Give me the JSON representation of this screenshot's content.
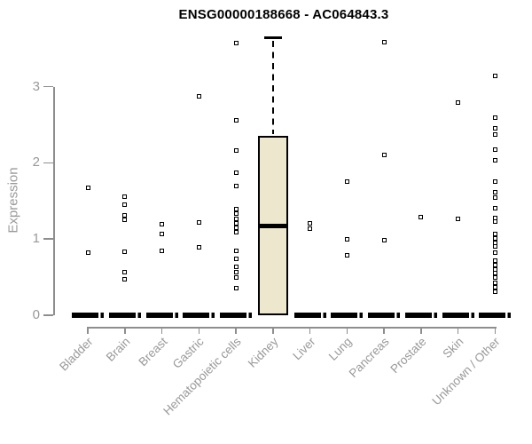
{
  "chart_data": {
    "type": "boxplot",
    "title": "ENSG00000188668 - AC064843.3",
    "ylabel": "Expression",
    "xlabel": "",
    "ylim": [
      0,
      3.8
    ],
    "yticks": [
      0,
      1,
      2,
      3
    ],
    "grid": "off",
    "legend": "none",
    "categories": [
      "Bladder",
      "Brain",
      "Breast",
      "Gastric",
      "Hematopoietic cells",
      "Kidney",
      "Liver",
      "Lung",
      "Pancreas",
      "Prostate",
      "Skin",
      "Unknown / Other"
    ],
    "groups": [
      {
        "name": "Bladder",
        "box": {
          "q1": 0,
          "median": 0,
          "q3": 0
        },
        "points": [
          1.67,
          0.82
        ]
      },
      {
        "name": "Brain",
        "box": {
          "q1": 0,
          "median": 0,
          "q3": 0
        },
        "points": [
          1.56,
          1.45,
          1.31,
          1.25,
          0.83,
          0.57,
          0.47
        ]
      },
      {
        "name": "Breast",
        "box": {
          "q1": 0,
          "median": 0,
          "q3": 0
        },
        "points": [
          1.19,
          1.07,
          0.84
        ]
      },
      {
        "name": "Gastric",
        "box": {
          "q1": 0,
          "median": 0,
          "q3": 0
        },
        "points": [
          2.87,
          1.22,
          0.89
        ]
      },
      {
        "name": "Hematopoietic cells",
        "box": {
          "q1": 0,
          "median": 0,
          "q3": 0
        },
        "points": [
          3.57,
          2.56,
          2.16,
          1.87,
          1.7,
          1.39,
          1.33,
          1.27,
          1.21,
          1.15,
          1.09,
          0.85,
          0.74,
          0.64,
          0.56,
          0.49,
          0.35
        ]
      },
      {
        "name": "Kidney",
        "box": {
          "q1": 0,
          "median": 1.17,
          "q3": 2.36,
          "whisker_low": 0,
          "whisker_high": 3.64
        },
        "points": []
      },
      {
        "name": "Liver",
        "box": {
          "q1": 0,
          "median": 0,
          "q3": 0
        },
        "points": [
          1.21,
          1.14
        ]
      },
      {
        "name": "Lung",
        "box": {
          "q1": 0,
          "median": 0,
          "q3": 0
        },
        "points": [
          1.75,
          1.0,
          0.79
        ]
      },
      {
        "name": "Pancreas",
        "box": {
          "q1": 0,
          "median": 0,
          "q3": 0
        },
        "points": [
          3.58,
          2.1,
          0.98
        ]
      },
      {
        "name": "Prostate",
        "box": {
          "q1": 0,
          "median": 0,
          "q3": 0
        },
        "points": [
          1.29
        ]
      },
      {
        "name": "Skin",
        "box": {
          "q1": 0,
          "median": 0,
          "q3": 0
        },
        "points": [
          2.79,
          1.27
        ]
      },
      {
        "name": "Unknown / Other",
        "box": {
          "q1": 0,
          "median": 0,
          "q3": 0
        },
        "points": [
          3.14,
          2.59,
          2.45,
          2.37,
          2.18,
          2.04,
          1.75,
          1.61,
          1.54,
          1.4,
          1.28,
          1.23,
          1.07,
          1.01,
          0.95,
          0.9,
          0.82,
          0.72,
          0.66,
          0.6,
          0.55,
          0.49,
          0.43,
          0.37,
          0.31
        ]
      }
    ],
    "colors": {
      "box_fill": "#ece7cd",
      "box_stroke": "#000000",
      "point_stroke": "#000000",
      "point_fill": "#ffffff",
      "axis": "#8e8e8e",
      "axis_text": "#999999",
      "title_text": "#000000",
      "background": "#ffffff"
    }
  }
}
